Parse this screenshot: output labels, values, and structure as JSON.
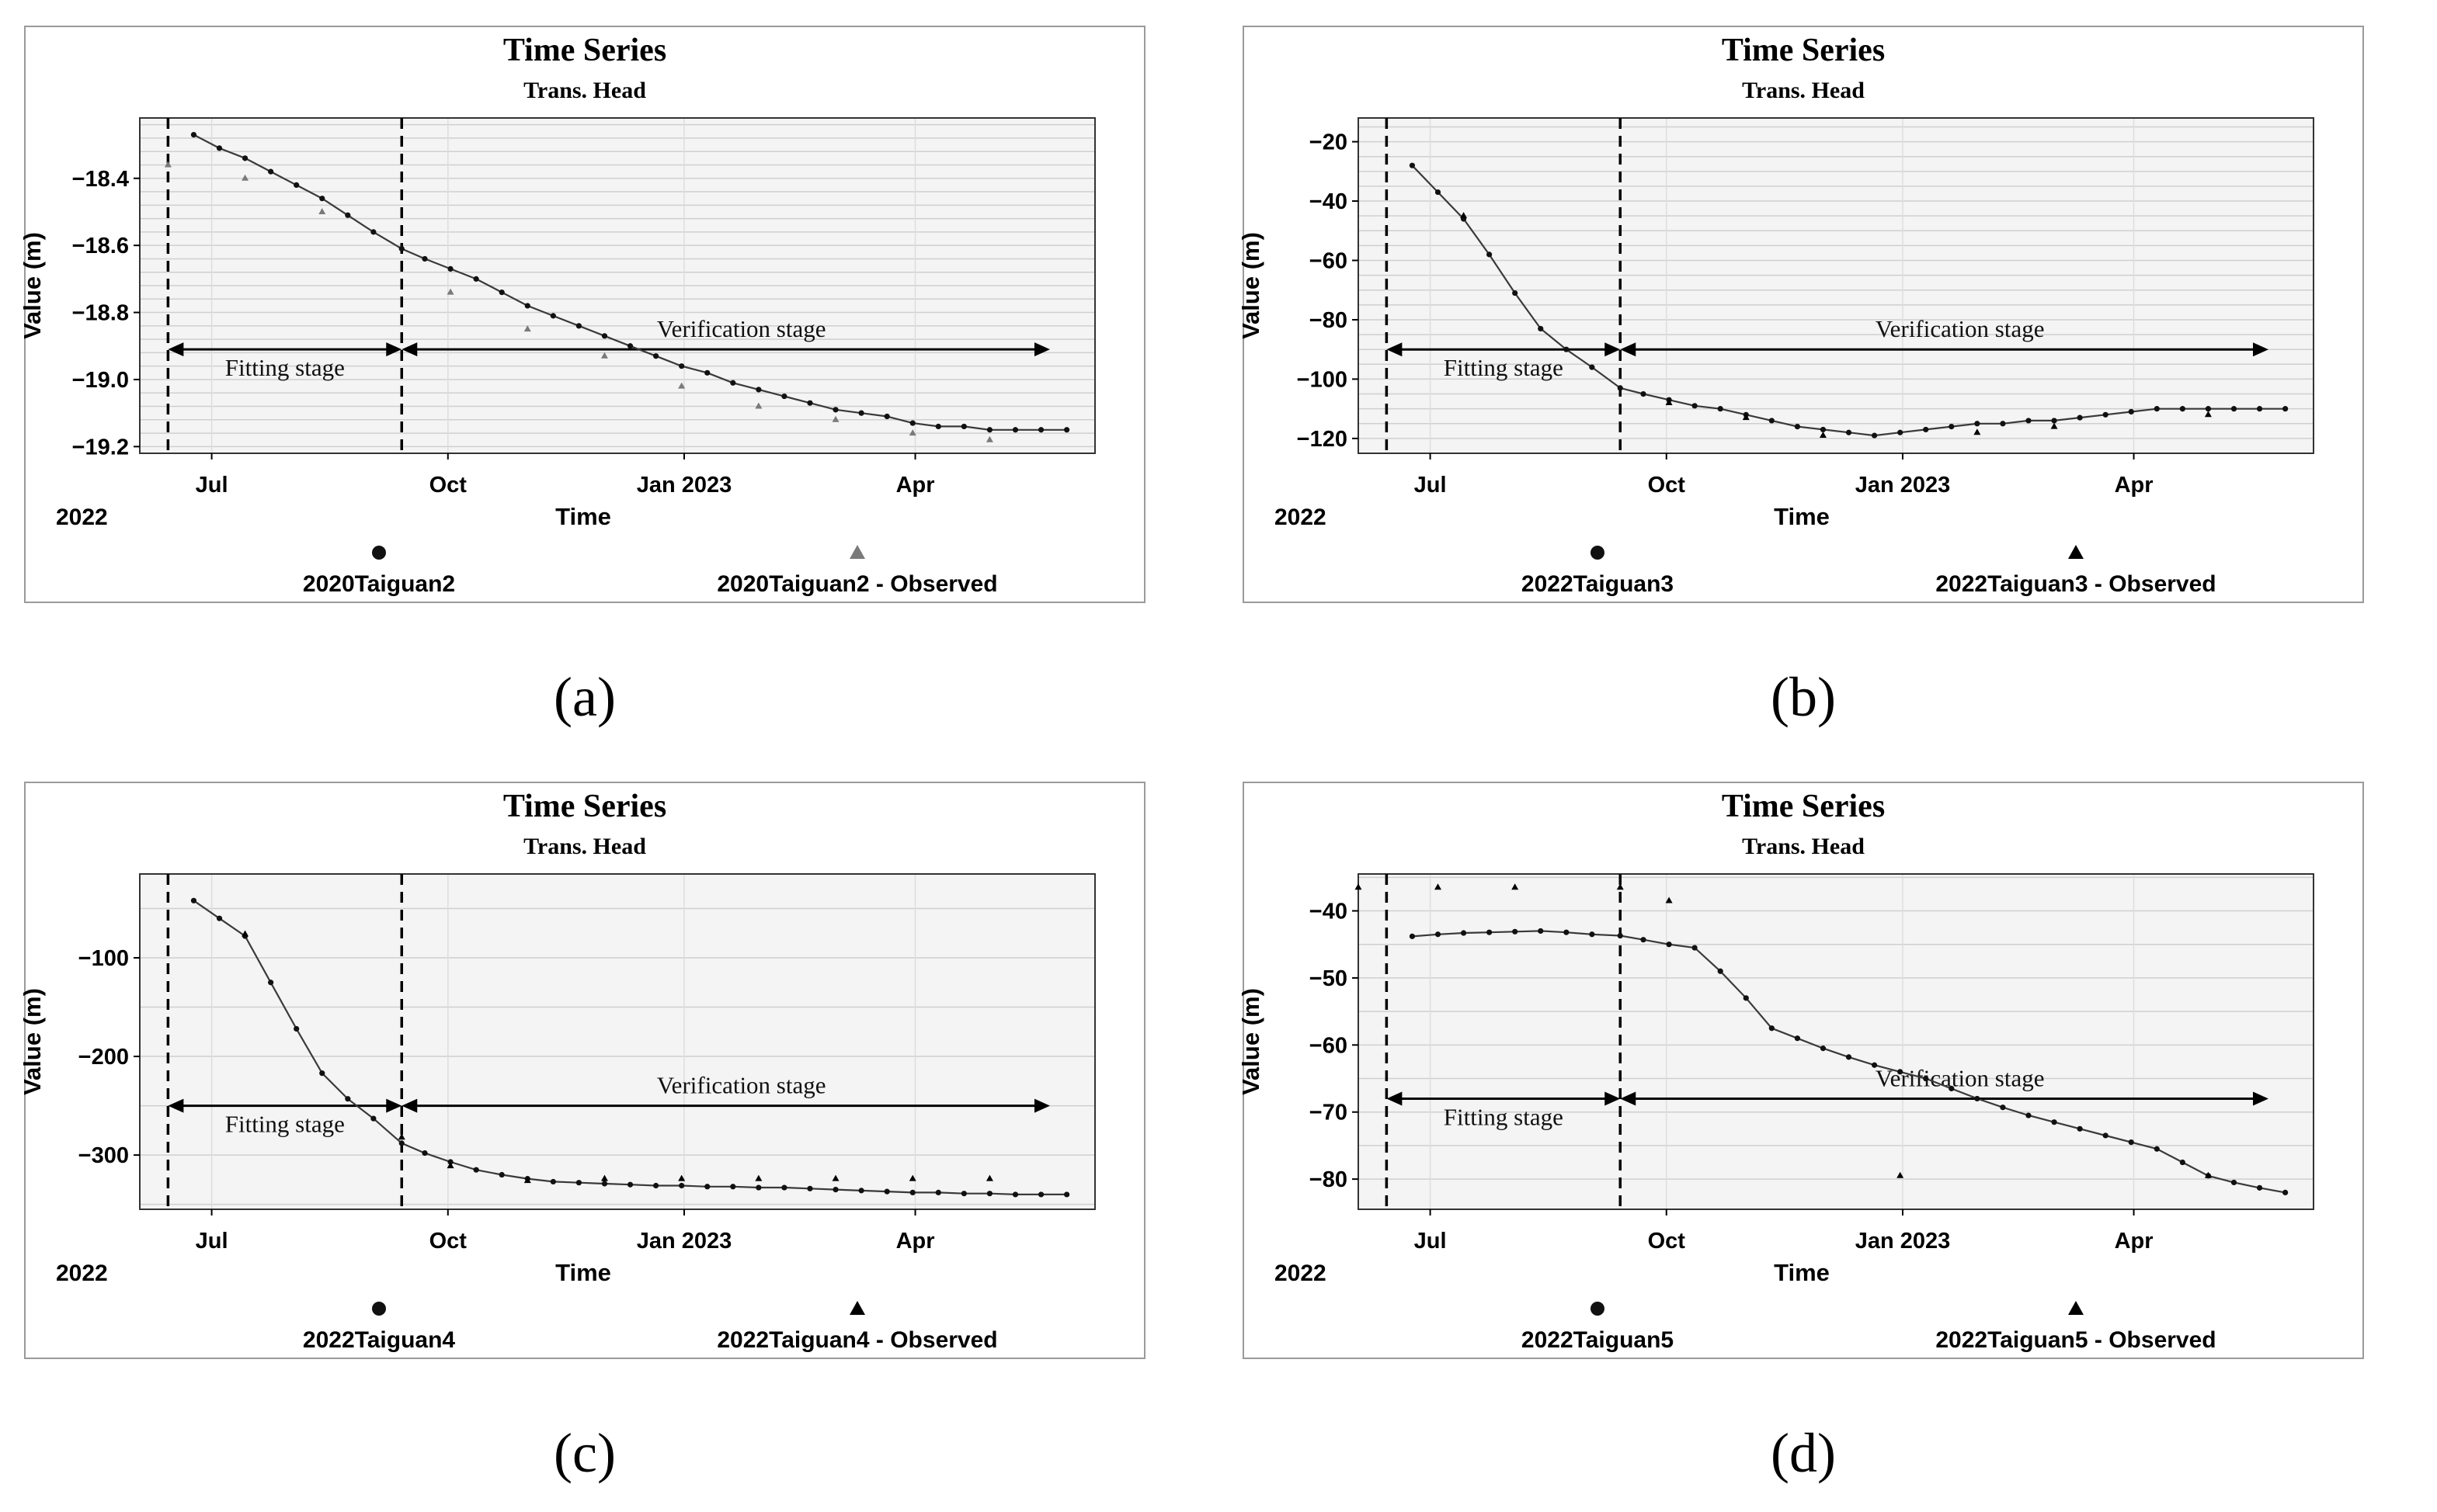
{
  "colors": {
    "plot_bg": "#f4f4f4",
    "grid": "#cfcfcf",
    "line": "#3a3a3a",
    "frame": "#9a9a9a",
    "observed_a": "#7a7a7a"
  },
  "x_axis": {
    "label": "Time",
    "year_label": "2022",
    "ticks": [
      "Jul",
      "Oct",
      "Jan 2023",
      "Apr"
    ]
  },
  "chart_data": [
    {
      "id": "a",
      "panel_label": "(a)",
      "type": "line",
      "title": "Time Series",
      "subtitle": "Trans. Head",
      "ylabel": "Value (m)",
      "ylim": [
        -19.22,
        -18.22
      ],
      "yticks": [
        -18.4,
        -18.6,
        -18.8,
        -19.0,
        -19.2
      ],
      "ytick_labels": [
        "−18.4",
        "−18.6",
        "−18.8",
        "−19.0",
        "−19.2"
      ],
      "minor_step": 0.04,
      "x_range": [
        "2022-06-03",
        "2023-06-10"
      ],
      "boundaries": [
        "2022-06-14",
        "2022-09-13"
      ],
      "fitting_label": "Fitting stage",
      "verification_label": "Verification stage",
      "arrow_y": -18.91,
      "legend": {
        "simulated": "2020Taiguan2",
        "observed": "2020Taiguan2 - Observed",
        "observed_marker_color": "#7a7a7a"
      },
      "series": [
        {
          "name": "2020Taiguan2",
          "x": [
            "2022-06-24",
            "2022-07-04",
            "2022-07-14",
            "2022-07-24",
            "2022-08-03",
            "2022-08-13",
            "2022-08-23",
            "2022-09-02",
            "2022-09-13",
            "2022-09-22",
            "2022-10-02",
            "2022-10-12",
            "2022-10-22",
            "2022-11-01",
            "2022-11-11",
            "2022-11-21",
            "2022-12-01",
            "2022-12-11",
            "2022-12-21",
            "2022-12-31",
            "2023-01-10",
            "2023-01-20",
            "2023-01-30",
            "2023-02-09",
            "2023-02-19",
            "2023-03-01",
            "2023-03-11",
            "2023-03-21",
            "2023-03-31",
            "2023-04-10",
            "2023-04-20",
            "2023-04-30",
            "2023-05-10",
            "2023-05-20",
            "2023-05-30"
          ],
          "y": [
            -18.27,
            -18.31,
            -18.34,
            -18.38,
            -18.42,
            -18.46,
            -18.51,
            -18.56,
            -18.61,
            -18.64,
            -18.67,
            -18.7,
            -18.74,
            -18.78,
            -18.81,
            -18.84,
            -18.87,
            -18.9,
            -18.93,
            -18.96,
            -18.98,
            -19.01,
            -19.03,
            -19.05,
            -19.07,
            -19.09,
            -19.1,
            -19.11,
            -19.13,
            -19.14,
            -19.14,
            -19.15,
            -19.15,
            -19.15,
            -19.15
          ]
        },
        {
          "name": "2020Taiguan2 - Observed",
          "x": [
            "2022-06-14",
            "2022-07-14",
            "2022-08-13",
            "2022-10-02",
            "2022-11-01",
            "2022-12-01",
            "2022-12-31",
            "2023-01-30",
            "2023-03-01",
            "2023-03-31",
            "2023-04-30"
          ],
          "y": [
            -18.36,
            -18.4,
            -18.5,
            -18.74,
            -18.85,
            -18.93,
            -19.02,
            -19.08,
            -19.12,
            -19.16,
            -19.18
          ]
        }
      ]
    },
    {
      "id": "b",
      "panel_label": "(b)",
      "type": "line",
      "title": "Time Series",
      "subtitle": "Trans. Head",
      "ylabel": "Value (m)",
      "ylim": [
        -125,
        -12
      ],
      "yticks": [
        -20,
        -40,
        -60,
        -80,
        -100,
        -120
      ],
      "ytick_labels": [
        "−20",
        "−40",
        "−60",
        "−80",
        "−100",
        "−120"
      ],
      "minor_step": 5,
      "x_range": [
        "2022-06-03",
        "2023-06-10"
      ],
      "boundaries": [
        "2022-06-14",
        "2022-09-13"
      ],
      "fitting_label": "Fitting stage",
      "verification_label": "Verification stage",
      "arrow_y": -90,
      "legend": {
        "simulated": "2022Taiguan3",
        "observed": "2022Taiguan3 - Observed",
        "observed_marker_color": "#000000"
      },
      "series": [
        {
          "name": "2022Taiguan3",
          "x": [
            "2022-06-24",
            "2022-07-04",
            "2022-07-14",
            "2022-07-24",
            "2022-08-03",
            "2022-08-13",
            "2022-08-23",
            "2022-09-02",
            "2022-09-13",
            "2022-09-22",
            "2022-10-02",
            "2022-10-12",
            "2022-10-22",
            "2022-11-01",
            "2022-11-11",
            "2022-11-21",
            "2022-12-01",
            "2022-12-11",
            "2022-12-21",
            "2022-12-31",
            "2023-01-10",
            "2023-01-20",
            "2023-01-30",
            "2023-02-09",
            "2023-02-19",
            "2023-03-01",
            "2023-03-11",
            "2023-03-21",
            "2023-03-31",
            "2023-04-10",
            "2023-04-20",
            "2023-04-30",
            "2023-05-10",
            "2023-05-20",
            "2023-05-30"
          ],
          "y": [
            -28,
            -37,
            -46,
            -58,
            -71,
            -83,
            -90,
            -96,
            -103,
            -105,
            -107,
            -109,
            -110,
            -112,
            -114,
            -116,
            -117,
            -118,
            -119,
            -118,
            -117,
            -116,
            -115,
            -115,
            -114,
            -114,
            -113,
            -112,
            -111,
            -110,
            -110,
            -110,
            -110,
            -110,
            -110
          ]
        },
        {
          "name": "2022Taiguan3 - Observed",
          "x": [
            "2022-07-14",
            "2022-10-02",
            "2022-11-01",
            "2022-12-01",
            "2023-01-30",
            "2023-03-01",
            "2023-04-30"
          ],
          "y": [
            -45,
            -108,
            -113,
            -119,
            -118,
            -116,
            -112
          ]
        }
      ]
    },
    {
      "id": "c",
      "panel_label": "(c)",
      "type": "line",
      "title": "Time Series",
      "subtitle": "Trans. Head",
      "ylabel": "Value (m)",
      "ylim": [
        -355,
        -15
      ],
      "yticks": [
        -100,
        -200,
        -300
      ],
      "ytick_labels": [
        "−100",
        "−200",
        "−300"
      ],
      "minor_step": 50,
      "x_range": [
        "2022-06-03",
        "2023-06-10"
      ],
      "boundaries": [
        "2022-06-14",
        "2022-09-13"
      ],
      "fitting_label": "Fitting stage",
      "verification_label": "Verification stage",
      "arrow_y": -250,
      "legend": {
        "simulated": "2022Taiguan4",
        "observed": "2022Taiguan4 - Observed",
        "observed_marker_color": "#000000"
      },
      "series": [
        {
          "name": "2022Taiguan4",
          "x": [
            "2022-06-24",
            "2022-07-04",
            "2022-07-14",
            "2022-07-24",
            "2022-08-03",
            "2022-08-13",
            "2022-08-23",
            "2022-09-02",
            "2022-09-13",
            "2022-09-22",
            "2022-10-02",
            "2022-10-12",
            "2022-10-22",
            "2022-11-01",
            "2022-11-11",
            "2022-11-21",
            "2022-12-01",
            "2022-12-11",
            "2022-12-21",
            "2022-12-31",
            "2023-01-10",
            "2023-01-20",
            "2023-01-30",
            "2023-02-09",
            "2023-02-19",
            "2023-03-01",
            "2023-03-11",
            "2023-03-21",
            "2023-03-31",
            "2023-04-10",
            "2023-04-20",
            "2023-04-30",
            "2023-05-10",
            "2023-05-20",
            "2023-05-30"
          ],
          "y": [
            -42,
            -60,
            -78,
            -125,
            -172,
            -217,
            -243,
            -263,
            -288,
            -298,
            -307,
            -315,
            -320,
            -324,
            -327,
            -328,
            -329,
            -330,
            -331,
            -331,
            -332,
            -332,
            -333,
            -333,
            -334,
            -335,
            -336,
            -337,
            -338,
            -338,
            -339,
            -339,
            -340,
            -340,
            -340
          ]
        },
        {
          "name": "2022Taiguan4 - Observed",
          "x": [
            "2022-07-14",
            "2022-09-13",
            "2022-10-02",
            "2022-11-01",
            "2022-12-01",
            "2022-12-31",
            "2023-01-30",
            "2023-03-01",
            "2023-03-31",
            "2023-04-30"
          ],
          "y": [
            -76,
            -282,
            -311,
            -326,
            -324,
            -324,
            -324,
            -324,
            -324,
            -324
          ]
        }
      ]
    },
    {
      "id": "d",
      "panel_label": "(d)",
      "type": "line",
      "title": "Time Series",
      "subtitle": "Trans. Head",
      "ylabel": "Value (m)",
      "ylim": [
        -84.5,
        -34.5
      ],
      "yticks": [
        -40,
        -50,
        -60,
        -70,
        -80
      ],
      "ytick_labels": [
        "−40",
        "−50",
        "−60",
        "−70",
        "−80"
      ],
      "minor_step": 5,
      "x_range": [
        "2022-06-03",
        "2023-06-10"
      ],
      "boundaries": [
        "2022-06-14",
        "2022-09-13"
      ],
      "fitting_label": "Fitting stage",
      "verification_label": "Verification stage",
      "arrow_y": -68,
      "legend": {
        "simulated": "2022Taiguan5",
        "observed": "2022Taiguan5 - Observed",
        "observed_marker_color": "#000000"
      },
      "series": [
        {
          "name": "2022Taiguan5",
          "x": [
            "2022-06-24",
            "2022-07-04",
            "2022-07-14",
            "2022-07-24",
            "2022-08-03",
            "2022-08-13",
            "2022-08-23",
            "2022-09-02",
            "2022-09-13",
            "2022-09-22",
            "2022-10-02",
            "2022-10-12",
            "2022-10-22",
            "2022-11-01",
            "2022-11-11",
            "2022-11-21",
            "2022-12-01",
            "2022-12-11",
            "2022-12-21",
            "2022-12-31",
            "2023-01-10",
            "2023-01-20",
            "2023-01-30",
            "2023-02-09",
            "2023-02-19",
            "2023-03-01",
            "2023-03-11",
            "2023-03-21",
            "2023-03-31",
            "2023-04-10",
            "2023-04-20",
            "2023-04-30",
            "2023-05-10",
            "2023-05-20",
            "2023-05-30"
          ],
          "y": [
            -43.8,
            -43.5,
            -43.3,
            -43.2,
            -43.1,
            -43.0,
            -43.2,
            -43.5,
            -43.7,
            -44.3,
            -45.0,
            -45.5,
            -49.0,
            -53.0,
            -57.5,
            -59.0,
            -60.5,
            -61.8,
            -63.0,
            -64.0,
            -65.0,
            -66.5,
            -68.0,
            -69.3,
            -70.5,
            -71.5,
            -72.5,
            -73.5,
            -74.5,
            -75.5,
            -77.5,
            -79.5,
            -80.5,
            -81.3,
            -82.0
          ]
        },
        {
          "name": "2022Taiguan5 - Observed",
          "x": [
            "2022-06-03",
            "2022-07-04",
            "2022-08-03",
            "2022-09-13",
            "2022-10-02",
            "2022-12-31",
            "2023-04-30"
          ],
          "y": [
            -36.5,
            -36.5,
            -36.5,
            -36.5,
            -38.5,
            -79.5,
            -79.5
          ]
        }
      ]
    }
  ]
}
